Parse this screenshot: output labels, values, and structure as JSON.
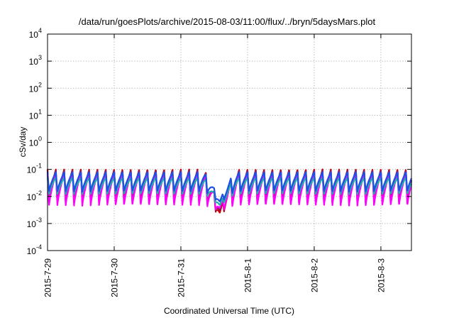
{
  "chart_data": {
    "type": "line",
    "title": "/data/run/goesPlots/archive/2015-08-03/11:00/flux/../bryn/5daysMars.plot",
    "xlabel": "Coordinated Universal Time (UTC)",
    "ylabel": "cSv/day",
    "yscale": "log",
    "ylim": [
      0.0001,
      10000
    ],
    "yticks": [
      {
        "base": "10",
        "exp": "4",
        "value": 10000
      },
      {
        "base": "10",
        "exp": "3",
        "value": 1000
      },
      {
        "base": "10",
        "exp": "2",
        "value": 100
      },
      {
        "base": "10",
        "exp": "1",
        "value": 10
      },
      {
        "base": "10",
        "exp": "0",
        "value": 1
      },
      {
        "base": "10",
        "exp": "-1",
        "value": 0.1
      },
      {
        "base": "10",
        "exp": "-2",
        "value": 0.01
      },
      {
        "base": "10",
        "exp": "-3",
        "value": 0.001
      },
      {
        "base": "10",
        "exp": "-4",
        "value": 0.0001
      }
    ],
    "xlim": [
      "2015-07-29T00:00",
      "2015-08-03T11:00"
    ],
    "xticks": [
      "2015-7-29",
      "2015-7-30",
      "2015-7-31",
      "2015-8-1",
      "2015-8-2",
      "2015-8-3"
    ],
    "grid": true,
    "series": [
      {
        "color": "#cc0000",
        "y_min": 0.006,
        "y_max": 0.1
      },
      {
        "color": "#8a1c5c",
        "y_min": 0.0055,
        "y_max": 0.09
      },
      {
        "color": "#ff00ff",
        "y_min": 0.0045,
        "y_max": 0.07
      },
      {
        "color": "#20b2aa",
        "y_min": 0.012,
        "y_max": 0.05
      },
      {
        "color": "#1e50e6",
        "y_min": 0.015,
        "y_max": 0.08
      }
    ],
    "period_hours": 3,
    "dip": {
      "time": "2015-07-31T14:00",
      "min": 0.0015
    }
  }
}
